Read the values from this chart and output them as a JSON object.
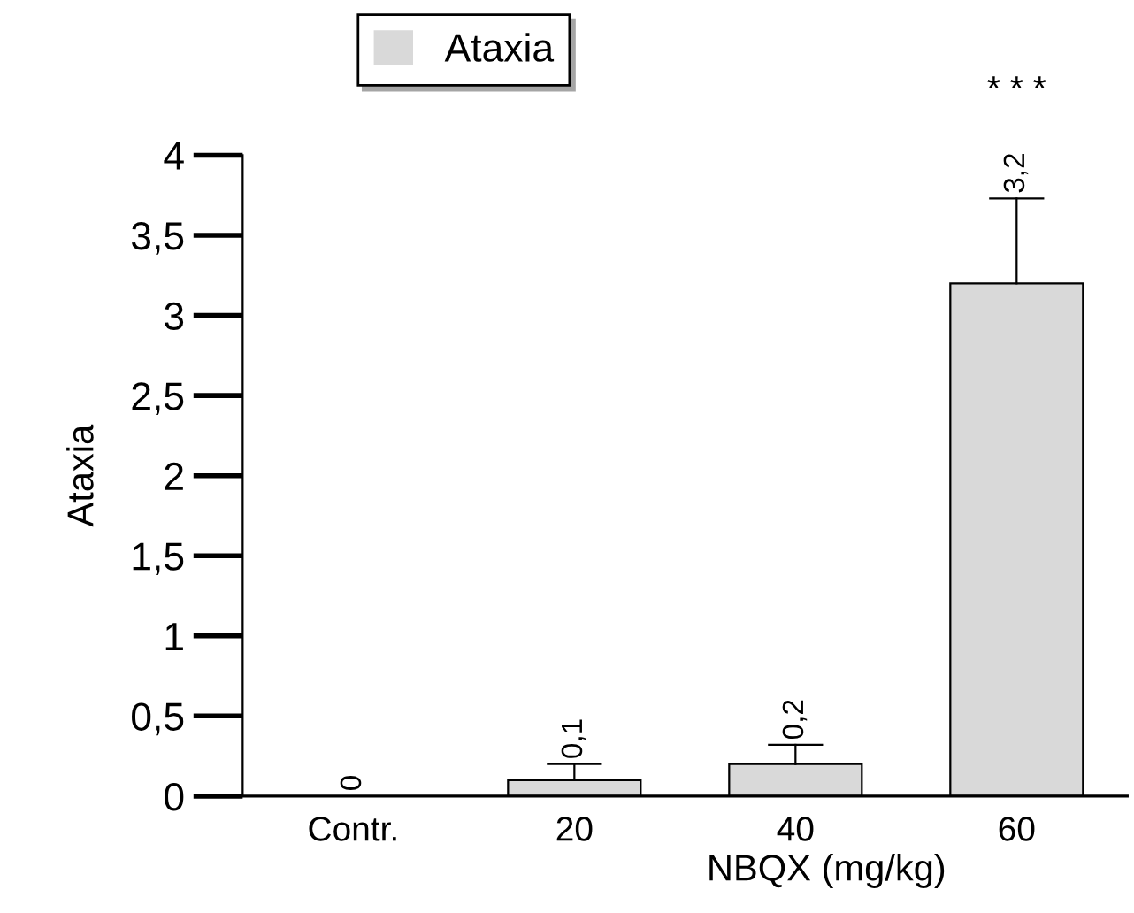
{
  "chart_data": {
    "type": "bar",
    "xlabel": "NBQX (mg/kg)",
    "ylabel": "Ataxia",
    "categories": [
      "Contr.",
      "20",
      "40",
      "60"
    ],
    "series": [
      {
        "name": "Ataxia",
        "color": "#d9d9d9",
        "values": [
          0,
          0.1,
          0.2,
          3.2
        ],
        "errors": [
          null,
          [
            0.1,
            0.2
          ],
          [
            0.2,
            0.32
          ],
          [
            3.2,
            3.73
          ]
        ],
        "value_labels": [
          "0",
          "0,1",
          "0,2",
          "3,2"
        ]
      }
    ],
    "ylim": [
      0,
      4
    ],
    "yticks": [
      0,
      {
        "value": 0.5,
        "label": "0,5"
      },
      1,
      {
        "value": 1.5,
        "label": "1,5"
      },
      2,
      {
        "value": 2.5,
        "label": "2,5"
      },
      3,
      {
        "value": 3.5,
        "label": "3,5"
      },
      4
    ],
    "annotations": [
      "* * *"
    ],
    "legend": "top",
    "grid": false
  }
}
